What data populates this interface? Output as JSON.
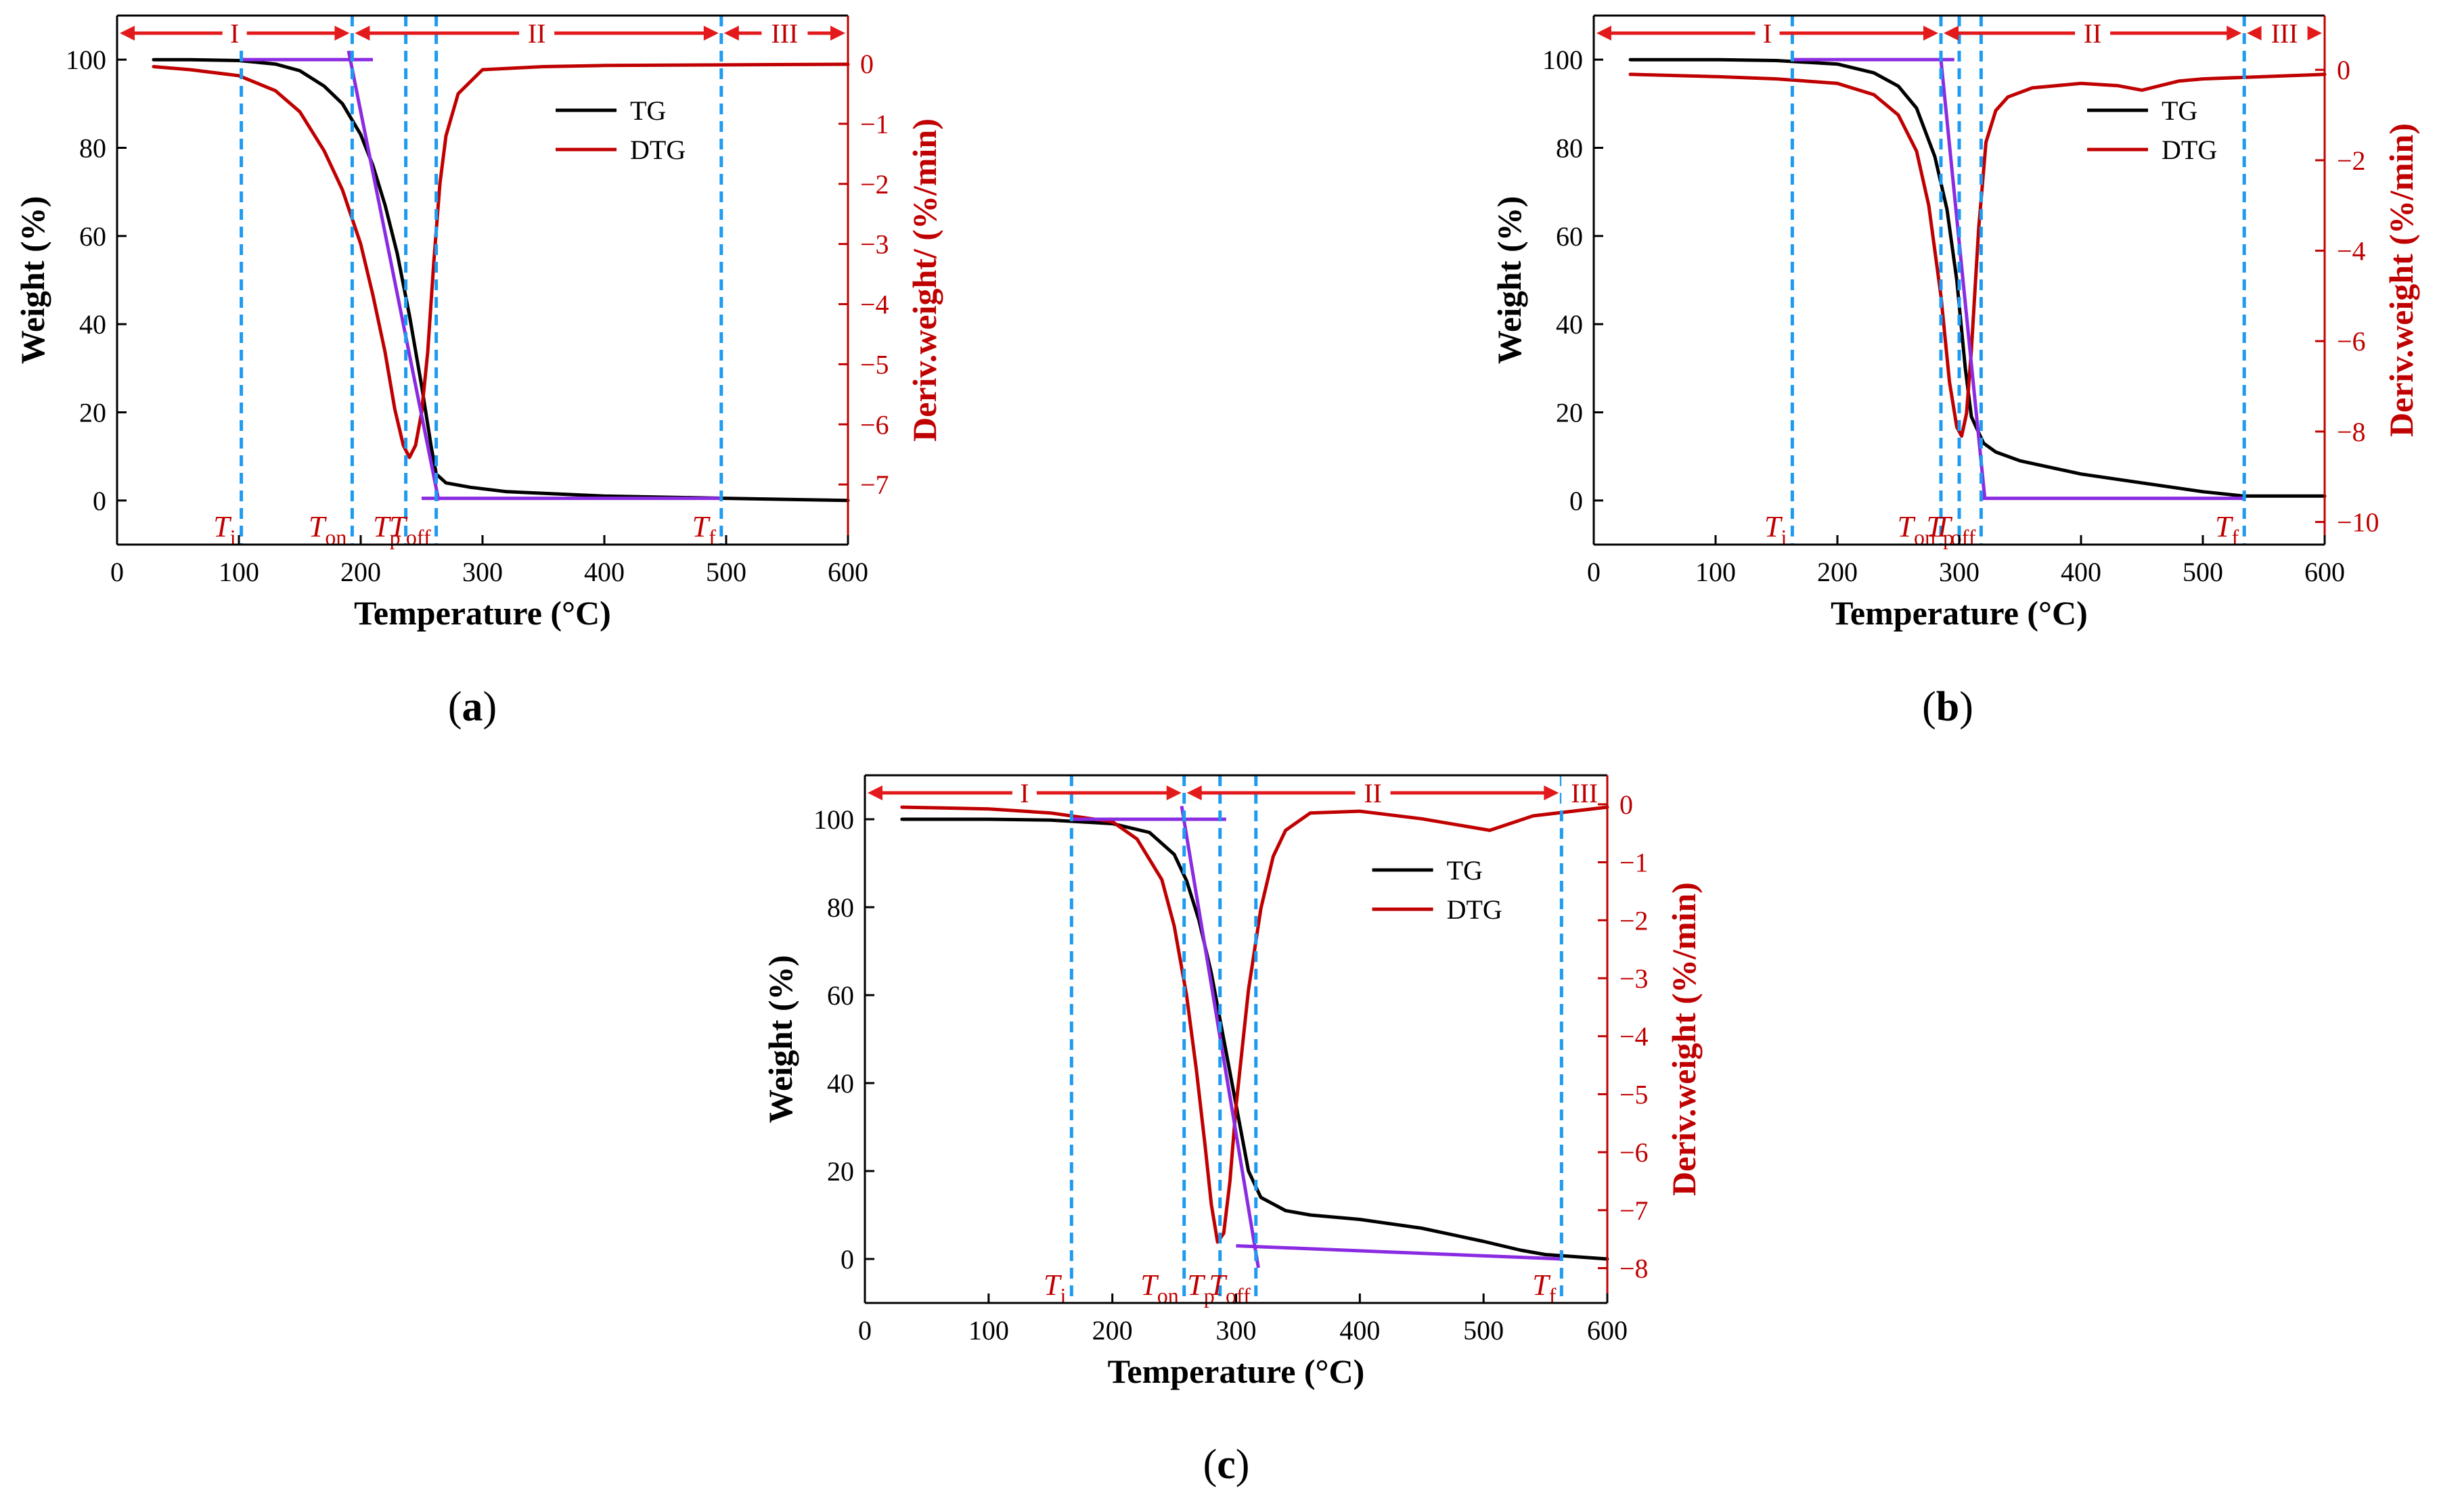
{
  "chart_data": [
    {
      "id": "a",
      "type": "line",
      "caption": "a",
      "xlabel": "Temperature (°C)",
      "ylabel": "Weight (%)",
      "y2label": "Deriv.weight/ (%/min)",
      "xlim": [
        0,
        600
      ],
      "ylim": [
        -10,
        110
      ],
      "y2lim": [
        -8,
        0.8
      ],
      "xticks": [
        0,
        100,
        200,
        300,
        400,
        500,
        600
      ],
      "yticks": [
        0,
        20,
        40,
        60,
        80,
        100
      ],
      "y2ticks": [
        0,
        -1,
        -2,
        -3,
        -4,
        -5,
        -6,
        -7
      ],
      "legend": [
        "TG",
        "DTG"
      ],
      "regions": [
        {
          "label": "I",
          "from": 0,
          "to": 193
        },
        {
          "label": "II",
          "from": 193,
          "to": 496
        },
        {
          "label": "III",
          "from": 496,
          "to": 600
        }
      ],
      "markers": [
        {
          "label": "T",
          "sub": "i",
          "x": 102
        },
        {
          "label": "T",
          "sub": "on",
          "x": 193
        },
        {
          "label": "T",
          "sub": "p",
          "x": 237
        },
        {
          "label": "T",
          "sub": "off",
          "x": 262
        },
        {
          "label": "T",
          "sub": "f",
          "x": 496
        }
      ],
      "tangents": [
        {
          "x1": 102,
          "y1": 100,
          "x2": 210,
          "y2": 100
        },
        {
          "x1": 190,
          "y1": 102,
          "x2": 264,
          "y2": 0
        },
        {
          "x1": 250,
          "y1": 0.5,
          "x2": 496,
          "y2": 0.5
        }
      ],
      "series": [
        {
          "name": "TG",
          "axis": "left",
          "color": "#000000",
          "x": [
            30,
            60,
            100,
            130,
            150,
            170,
            185,
            200,
            210,
            220,
            230,
            240,
            250,
            258,
            262,
            270,
            290,
            320,
            400,
            500,
            600
          ],
          "y": [
            100,
            100,
            99.8,
            99,
            97.5,
            94,
            90,
            83,
            76,
            67,
            56,
            42,
            26,
            12,
            6,
            4,
            3,
            2,
            1,
            0.5,
            0
          ]
        },
        {
          "name": "DTG",
          "axis": "right",
          "color": "#c00000",
          "x": [
            30,
            60,
            100,
            130,
            150,
            170,
            185,
            200,
            210,
            220,
            228,
            235,
            240,
            245,
            250,
            255,
            260,
            265,
            270,
            280,
            300,
            350,
            400,
            500,
            600
          ],
          "y": [
            -0.05,
            -0.1,
            -0.2,
            -0.45,
            -0.8,
            -1.45,
            -2.1,
            -3.0,
            -3.85,
            -4.8,
            -5.75,
            -6.35,
            -6.55,
            -6.35,
            -5.8,
            -4.8,
            -3.3,
            -2.0,
            -1.2,
            -0.5,
            -0.1,
            -0.05,
            -0.03,
            -0.02,
            -0.01
          ]
        }
      ]
    },
    {
      "id": "b",
      "type": "line",
      "caption": "b",
      "xlabel": "Temperature (°C)",
      "ylabel": "Weight (%)",
      "y2label": "Deriv.weight (%/min)",
      "xlim": [
        0,
        600
      ],
      "ylim": [
        -10,
        110
      ],
      "y2lim": [
        -10.5,
        1.2
      ],
      "xticks": [
        0,
        100,
        200,
        300,
        400,
        500,
        600
      ],
      "yticks": [
        0,
        20,
        40,
        60,
        80,
        100
      ],
      "y2ticks": [
        0,
        -2,
        -4,
        -6,
        -8,
        -10
      ],
      "legend": [
        "TG",
        "DTG"
      ],
      "regions": [
        {
          "label": "I",
          "from": 0,
          "to": 285
        },
        {
          "label": "II",
          "from": 285,
          "to": 534
        },
        {
          "label": "III",
          "from": 534,
          "to": 600
        }
      ],
      "markers": [
        {
          "label": "T",
          "sub": "i",
          "x": 163
        },
        {
          "label": "T",
          "sub": "on",
          "x": 285
        },
        {
          "label": "T",
          "sub": "p",
          "x": 300
        },
        {
          "label": "T",
          "sub": "off",
          "x": 318
        },
        {
          "label": "T",
          "sub": "f",
          "x": 534
        }
      ],
      "tangents": [
        {
          "x1": 163,
          "y1": 100,
          "x2": 296,
          "y2": 100
        },
        {
          "x1": 285,
          "y1": 100,
          "x2": 321,
          "y2": 0.5
        },
        {
          "x1": 318,
          "y1": 0.5,
          "x2": 534,
          "y2": 0.5
        }
      ],
      "series": [
        {
          "name": "TG",
          "axis": "left",
          "color": "#000000",
          "x": [
            30,
            100,
            150,
            200,
            230,
            250,
            265,
            280,
            290,
            298,
            305,
            310,
            315,
            320,
            330,
            350,
            400,
            450,
            500,
            534,
            600
          ],
          "y": [
            100,
            100,
            99.8,
            99,
            97,
            94,
            89,
            78,
            66,
            50,
            30,
            19,
            16,
            13,
            11,
            9,
            6,
            4,
            2,
            1,
            1
          ]
        },
        {
          "name": "DTG",
          "axis": "right",
          "color": "#c00000",
          "x": [
            30,
            100,
            150,
            200,
            230,
            250,
            265,
            275,
            285,
            292,
            298,
            302,
            306,
            310,
            316,
            322,
            330,
            340,
            360,
            400,
            430,
            450,
            480,
            500,
            600
          ],
          "y": [
            -0.1,
            -0.15,
            -0.2,
            -0.3,
            -0.55,
            -1.0,
            -1.8,
            -3.0,
            -5.0,
            -6.9,
            -7.9,
            -8.1,
            -7.6,
            -6.2,
            -3.5,
            -1.6,
            -0.9,
            -0.6,
            -0.4,
            -0.3,
            -0.35,
            -0.45,
            -0.25,
            -0.2,
            -0.1
          ]
        }
      ]
    },
    {
      "id": "c",
      "type": "line",
      "caption": "c",
      "xlabel": "Temperature (°C)",
      "ylabel": "Weight (%)",
      "y2label": "Deriv.weight (%/min)",
      "xlim": [
        0,
        600
      ],
      "ylim": [
        -10,
        110
      ],
      "y2lim": [
        -8.6,
        0.5
      ],
      "xticks": [
        0,
        100,
        200,
        300,
        400,
        500,
        600
      ],
      "yticks": [
        0,
        20,
        40,
        60,
        80,
        100
      ],
      "y2ticks": [
        0,
        -1,
        -2,
        -3,
        -4,
        -5,
        -6,
        -7,
        -8
      ],
      "legend": [
        "TG",
        "DTG"
      ],
      "regions": [
        {
          "label": "I",
          "from": 0,
          "to": 258
        },
        {
          "label": "II",
          "from": 258,
          "to": 563
        },
        {
          "label": "III",
          "from": 563,
          "to": 600
        }
      ],
      "markers": [
        {
          "label": "T",
          "sub": "i",
          "x": 167
        },
        {
          "label": "T",
          "sub": "on",
          "x": 258
        },
        {
          "label": "T",
          "sub": "p",
          "x": 287
        },
        {
          "label": "T",
          "sub": "off",
          "x": 316
        },
        {
          "label": "T",
          "sub": "f",
          "x": 563
        }
      ],
      "tangents": [
        {
          "x1": 167,
          "y1": 100,
          "x2": 292,
          "y2": 100
        },
        {
          "x1": 256,
          "y1": 103,
          "x2": 318,
          "y2": -2
        },
        {
          "x1": 300,
          "y1": 3,
          "x2": 563,
          "y2": 0
        }
      ],
      "series": [
        {
          "name": "TG",
          "axis": "left",
          "color": "#000000",
          "x": [
            30,
            100,
            150,
            200,
            230,
            250,
            260,
            270,
            280,
            290,
            300,
            310,
            320,
            340,
            360,
            400,
            450,
            500,
            530,
            550,
            600
          ],
          "y": [
            100,
            100,
            99.8,
            99,
            97,
            92,
            86,
            77,
            65,
            50,
            35,
            20,
            14,
            11,
            10,
            9,
            7,
            4,
            2,
            1,
            0
          ]
        },
        {
          "name": "DTG",
          "axis": "right",
          "color": "#c00000",
          "x": [
            30,
            100,
            150,
            200,
            220,
            240,
            250,
            260,
            268,
            275,
            280,
            285,
            290,
            295,
            300,
            305,
            310,
            320,
            330,
            340,
            360,
            400,
            450,
            505,
            540,
            600
          ],
          "y": [
            -0.05,
            -0.08,
            -0.15,
            -0.3,
            -0.6,
            -1.3,
            -2.1,
            -3.3,
            -4.6,
            -5.9,
            -6.9,
            -7.55,
            -7.4,
            -6.5,
            -5.2,
            -4.2,
            -3.2,
            -1.8,
            -0.9,
            -0.45,
            -0.15,
            -0.12,
            -0.25,
            -0.45,
            -0.2,
            -0.05
          ]
        }
      ]
    }
  ]
}
